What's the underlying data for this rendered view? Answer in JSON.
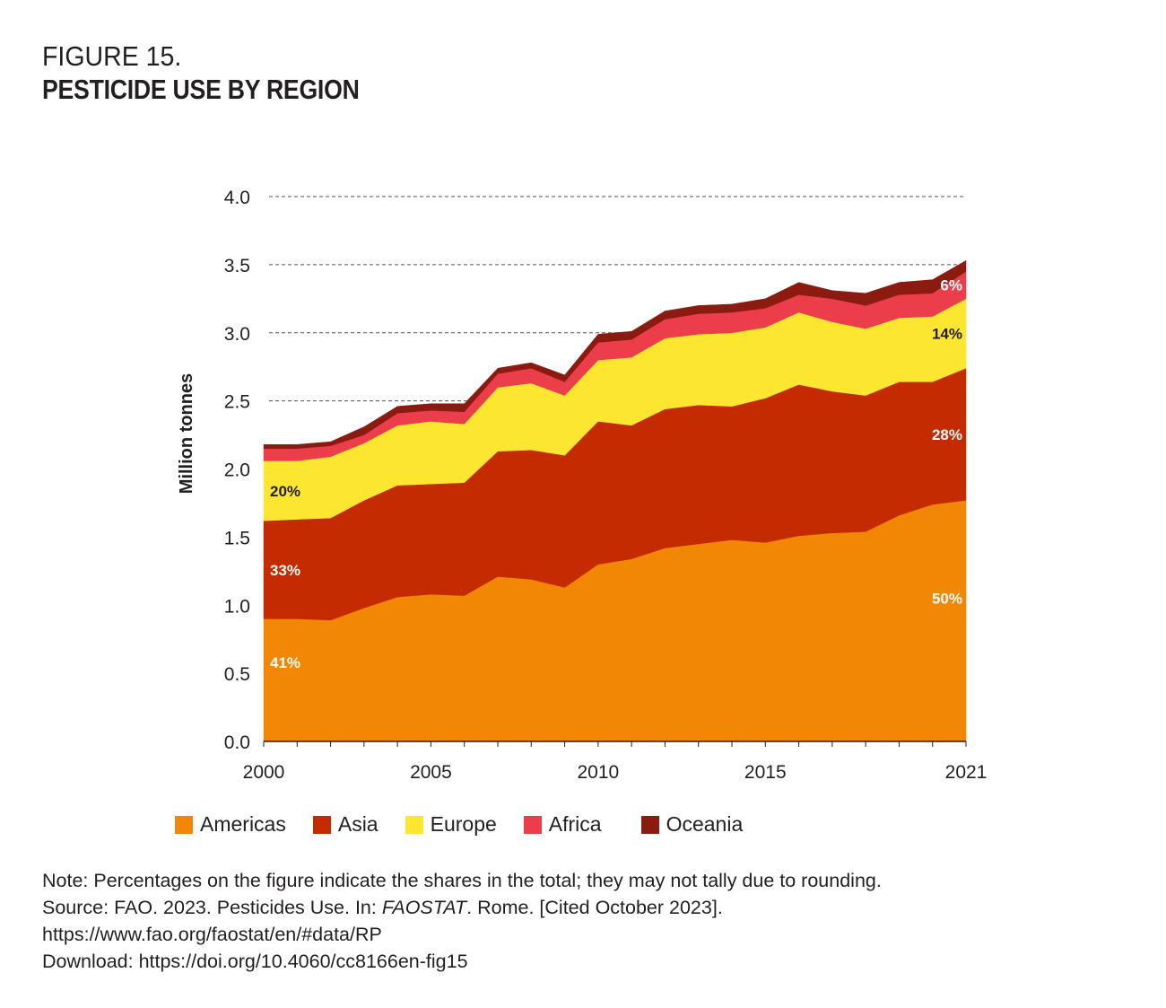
{
  "figure": {
    "label": "FIGURE 15.",
    "title": "PESTICIDE USE BY REGION"
  },
  "notes": {
    "note": "Note: Percentages on the figure indicate the shares in the total; they may not tally due to rounding.",
    "source_prefix": "Source: FAO. 2023. Pesticides Use. In: ",
    "source_italic": "FAOSTAT",
    "source_suffix": ". Rome. [Cited October 2023].",
    "source_url": "https://www.fao.org/faostat/en/#data/RP",
    "download": "Download: https://doi.org/10.4060/cc8166en-fig15"
  },
  "chart_data": {
    "type": "area",
    "stacked": true,
    "title": "PESTICIDE USE BY REGION",
    "xlabel": "",
    "ylabel": "Million tonnes",
    "x": [
      2000,
      2001,
      2002,
      2003,
      2004,
      2005,
      2006,
      2007,
      2008,
      2009,
      2010,
      2011,
      2012,
      2013,
      2014,
      2015,
      2016,
      2017,
      2018,
      2019,
      2020,
      2021
    ],
    "xticks": [
      2000,
      2005,
      2010,
      2015,
      2021
    ],
    "xtick_labels": [
      "2000",
      "2005",
      "2010",
      "2015",
      "2021"
    ],
    "ylim": [
      0,
      4.0
    ],
    "yticks": [
      0.0,
      0.5,
      1.0,
      1.5,
      2.0,
      2.5,
      3.0,
      3.5,
      4.0
    ],
    "ytick_labels": [
      "0.0",
      "0.5",
      "1.0",
      "1.5",
      "2.0",
      "2.5",
      "3.0",
      "3.5",
      "4.0"
    ],
    "grid": "horizontal dashed",
    "legend_position": "bottom",
    "series": [
      {
        "name": "Americas",
        "color": "#f28705",
        "values": [
          0.9,
          0.9,
          0.89,
          0.98,
          1.06,
          1.08,
          1.07,
          1.21,
          1.19,
          1.13,
          1.3,
          1.34,
          1.42,
          1.45,
          1.48,
          1.46,
          1.51,
          1.53,
          1.54,
          1.66,
          1.74,
          1.77
        ],
        "share_start": "41%",
        "share_end": "50%"
      },
      {
        "name": "Asia",
        "color": "#c42b00",
        "values": [
          0.72,
          0.73,
          0.75,
          0.79,
          0.82,
          0.81,
          0.83,
          0.92,
          0.95,
          0.97,
          1.05,
          0.98,
          1.02,
          1.02,
          0.98,
          1.06,
          1.11,
          1.04,
          1.0,
          0.98,
          0.9,
          0.97
        ],
        "share_start": "33%",
        "share_end": "28%"
      },
      {
        "name": "Europe",
        "color": "#fde630",
        "values": [
          0.44,
          0.43,
          0.45,
          0.42,
          0.44,
          0.46,
          0.43,
          0.47,
          0.49,
          0.44,
          0.45,
          0.5,
          0.52,
          0.52,
          0.54,
          0.52,
          0.53,
          0.51,
          0.49,
          0.47,
          0.48,
          0.51
        ],
        "share_start": "20%",
        "share_end": "14%"
      },
      {
        "name": "Africa",
        "color": "#ec3d4a",
        "values": [
          0.09,
          0.09,
          0.08,
          0.06,
          0.09,
          0.08,
          0.09,
          0.1,
          0.11,
          0.1,
          0.13,
          0.13,
          0.14,
          0.15,
          0.15,
          0.14,
          0.13,
          0.17,
          0.17,
          0.17,
          0.17,
          0.2
        ],
        "share_start": "",
        "share_end": "6%"
      },
      {
        "name": "Oceania",
        "color": "#8b1a10",
        "values": [
          0.03,
          0.03,
          0.03,
          0.06,
          0.05,
          0.05,
          0.06,
          0.04,
          0.04,
          0.05,
          0.06,
          0.06,
          0.06,
          0.06,
          0.06,
          0.07,
          0.09,
          0.06,
          0.09,
          0.09,
          0.1,
          0.08
        ],
        "share_start": "",
        "share_end": ""
      }
    ],
    "annotations": [
      {
        "series": "Americas",
        "year": 2000,
        "text": "41%",
        "color": "#ffffff"
      },
      {
        "series": "Asia",
        "year": 2000,
        "text": "33%",
        "color": "#ffffff"
      },
      {
        "series": "Europe",
        "year": 2000,
        "text": "20%",
        "color": "#231f20"
      },
      {
        "series": "Americas",
        "year": 2021,
        "text": "50%",
        "color": "#ffffff"
      },
      {
        "series": "Asia",
        "year": 2021,
        "text": "28%",
        "color": "#ffffff"
      },
      {
        "series": "Europe",
        "year": 2021,
        "text": "14%",
        "color": "#231f20"
      },
      {
        "series": "Africa",
        "year": 2021,
        "text": "6%",
        "color": "#ffffff"
      }
    ]
  }
}
